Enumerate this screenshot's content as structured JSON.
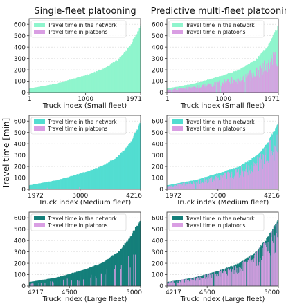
{
  "figure": {
    "col_titles": [
      "Single-fleet platooning",
      "Predictive multi-fleet platooning"
    ],
    "shared_ylabel": "Travel time [min]"
  },
  "colors": {
    "small_network": "#8ff5cd",
    "medium_network": "#52ddd1",
    "large_network": "#147f7a",
    "platoons": "#d99ee3"
  },
  "chart_data": [
    {
      "type": "area",
      "panel": "small-single",
      "xlabel": "Truck index (Small fleet)",
      "ylabel": "",
      "xlim": [
        1,
        1971
      ],
      "ylim": [
        0,
        650
      ],
      "xticks": [
        "1",
        "1000",
        "1971"
      ],
      "yticks": [
        0,
        100,
        200,
        300,
        400,
        500,
        600
      ],
      "legend_position": "top-left",
      "grid": true,
      "series": [
        {
          "name": "Travel time in the network",
          "color": "#8ff5cd",
          "profile": [
            [
              0,
              35
            ],
            [
              0.25,
              80
            ],
            [
              0.5,
              150
            ],
            [
              0.65,
              200
            ],
            [
              0.8,
              290
            ],
            [
              0.9,
              400
            ],
            [
              1,
              585
            ]
          ]
        },
        {
          "name": "Travel time in platoons",
          "color": "#d99ee3",
          "density": 0.0,
          "intensity": 0.0
        }
      ]
    },
    {
      "type": "area",
      "panel": "small-multi",
      "xlabel": "Truck index (Small fleet)",
      "ylabel": "",
      "xlim": [
        1,
        1971
      ],
      "ylim": [
        0,
        650
      ],
      "xticks": [
        "1",
        "1000",
        "1971"
      ],
      "yticks": [
        0,
        100,
        200,
        300,
        400,
        500,
        600
      ],
      "legend_position": "top-left",
      "grid": true,
      "series": [
        {
          "name": "Travel time in the network",
          "color": "#8ff5cd",
          "profile": [
            [
              0,
              35
            ],
            [
              0.25,
              80
            ],
            [
              0.5,
              150
            ],
            [
              0.65,
              200
            ],
            [
              0.8,
              290
            ],
            [
              0.9,
              400
            ],
            [
              1,
              585
            ]
          ]
        },
        {
          "name": "Travel time in platoons",
          "color": "#d99ee3",
          "density": 0.97,
          "intensity": 0.65
        }
      ]
    },
    {
      "type": "area",
      "panel": "medium-single",
      "xlabel": "Truck index (Medium fleet)",
      "ylabel": "",
      "xlim": [
        1972,
        4216
      ],
      "ylim": [
        0,
        650
      ],
      "xticks": [
        "1972",
        "3000",
        "4216"
      ],
      "yticks": [
        0,
        100,
        200,
        300,
        400,
        500,
        600
      ],
      "legend_position": "top-left",
      "grid": true,
      "series": [
        {
          "name": "Travel time in the network",
          "color": "#52ddd1",
          "profile": [
            [
              0,
              35
            ],
            [
              0.25,
              80
            ],
            [
              0.5,
              150
            ],
            [
              0.65,
              200
            ],
            [
              0.8,
              290
            ],
            [
              0.9,
              400
            ],
            [
              1,
              585
            ]
          ]
        },
        {
          "name": "Travel time in platoons",
          "color": "#d99ee3",
          "density": 0.015,
          "intensity": 0.25
        }
      ]
    },
    {
      "type": "area",
      "panel": "medium-multi",
      "xlabel": "Truck index (Medium fleet)",
      "ylabel": "",
      "xlim": [
        1972,
        4216
      ],
      "ylim": [
        0,
        650
      ],
      "xticks": [
        "1972",
        "3000",
        "4216"
      ],
      "yticks": [
        0,
        100,
        200,
        300,
        400,
        500,
        600
      ],
      "legend_position": "top-left",
      "grid": true,
      "series": [
        {
          "name": "Travel time in the network",
          "color": "#52ddd1",
          "profile": [
            [
              0,
              35
            ],
            [
              0.25,
              80
            ],
            [
              0.5,
              150
            ],
            [
              0.65,
              200
            ],
            [
              0.8,
              290
            ],
            [
              0.9,
              400
            ],
            [
              1,
              585
            ]
          ]
        },
        {
          "name": "Travel time in platoons",
          "color": "#d99ee3",
          "density": 0.98,
          "intensity": 0.8
        }
      ]
    },
    {
      "type": "area",
      "panel": "large-single",
      "xlabel": "Truck index (Large fleet)",
      "ylabel": "",
      "xlim": [
        4217,
        5000
      ],
      "ylim": [
        0,
        650
      ],
      "xticks": [
        "4217",
        "4500",
        "5000"
      ],
      "yticks": [
        0,
        100,
        200,
        300,
        400,
        500,
        600
      ],
      "legend_position": "top-left",
      "grid": true,
      "series": [
        {
          "name": "Travel time in the network",
          "color": "#147f7a",
          "profile": [
            [
              0,
              35
            ],
            [
              0.25,
              75
            ],
            [
              0.5,
              145
            ],
            [
              0.65,
              200
            ],
            [
              0.8,
              300
            ],
            [
              0.9,
              420
            ],
            [
              1,
              585
            ]
          ]
        },
        {
          "name": "Travel time in platoons",
          "color": "#d99ee3",
          "density": 0.22,
          "intensity": 0.55
        }
      ]
    },
    {
      "type": "area",
      "panel": "large-multi",
      "xlabel": "Truck index (Large fleet)",
      "ylabel": "",
      "xlim": [
        4217,
        5000
      ],
      "ylim": [
        0,
        650
      ],
      "xticks": [
        "4217",
        "4500",
        "5000"
      ],
      "yticks": [
        0,
        100,
        200,
        300,
        400,
        500,
        600
      ],
      "legend_position": "top-left",
      "grid": true,
      "series": [
        {
          "name": "Travel time in the network",
          "color": "#147f7a",
          "profile": [
            [
              0,
              35
            ],
            [
              0.25,
              75
            ],
            [
              0.5,
              145
            ],
            [
              0.65,
              200
            ],
            [
              0.8,
              300
            ],
            [
              0.9,
              420
            ],
            [
              1,
              585
            ]
          ]
        },
        {
          "name": "Travel time in platoons",
          "color": "#d99ee3",
          "density": 0.96,
          "intensity": 0.9
        }
      ]
    }
  ]
}
